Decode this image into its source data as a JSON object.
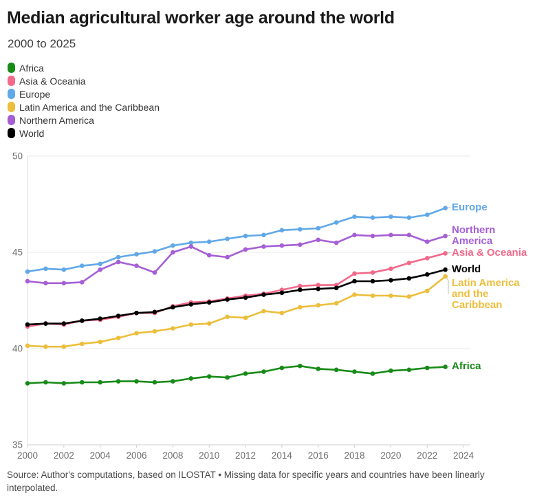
{
  "header": {
    "title": "Median agricultural worker age around the world",
    "subtitle": "2000 to 2025"
  },
  "footer": {
    "source": "Source: Author's computations, based on ILOSTAT • Missing data for specific years and countries have been linearly interpolated."
  },
  "chart_data": {
    "type": "line",
    "title": "Median agricultural worker age around the world",
    "subtitle": "2000 to 2025",
    "xlabel": "",
    "ylabel": "",
    "ylim": [
      35,
      50
    ],
    "y_ticks": [
      35,
      40,
      45,
      50
    ],
    "x_tick_labels": [
      "2000",
      "2002",
      "2004",
      "2006",
      "2008",
      "2010",
      "2012",
      "2014",
      "2016",
      "2018",
      "2020",
      "2022",
      "2024"
    ],
    "x_tick_years": [
      2000,
      2002,
      2004,
      2006,
      2008,
      2010,
      2012,
      2014,
      2016,
      2018,
      2020,
      2022,
      2024
    ],
    "grid": true,
    "legend_position": "top-left",
    "markers": true,
    "x": [
      2000,
      2001,
      2002,
      2003,
      2004,
      2005,
      2006,
      2007,
      2008,
      2009,
      2010,
      2011,
      2012,
      2013,
      2014,
      2015,
      2016,
      2017,
      2018,
      2019,
      2020,
      2021,
      2022,
      2023
    ],
    "series": [
      {
        "name": "Africa",
        "color": "#178a17",
        "end_label_lines": [
          "Africa"
        ],
        "end_label_below": false,
        "values": [
          38.2,
          38.25,
          38.2,
          38.25,
          38.25,
          38.3,
          38.3,
          38.25,
          38.3,
          38.45,
          38.55,
          38.5,
          38.7,
          38.8,
          39.0,
          39.1,
          38.95,
          38.9,
          38.8,
          38.7,
          38.85,
          38.9,
          39.0,
          39.05
        ]
      },
      {
        "name": "Asia & Oceania",
        "color": "#f2698a",
        "end_label_lines": [
          "Asia & Oceania"
        ],
        "end_label_below": false,
        "values": [
          41.15,
          41.3,
          41.25,
          41.45,
          41.5,
          41.65,
          41.85,
          41.85,
          42.2,
          42.4,
          42.45,
          42.6,
          42.75,
          42.85,
          43.05,
          43.25,
          43.3,
          43.3,
          43.9,
          43.95,
          44.15,
          44.45,
          44.7,
          44.95
        ]
      },
      {
        "name": "Europe",
        "color": "#60a8e8",
        "end_label_lines": [
          "Europe"
        ],
        "end_label_below": false,
        "values": [
          44.0,
          44.15,
          44.1,
          44.3,
          44.4,
          44.75,
          44.9,
          45.05,
          45.35,
          45.5,
          45.55,
          45.7,
          45.85,
          45.9,
          46.15,
          46.2,
          46.25,
          46.55,
          46.85,
          46.8,
          46.85,
          46.8,
          46.95,
          47.3
        ]
      },
      {
        "name": "Latin America and the Caribbean",
        "color": "#ecbe3c",
        "end_label_lines": [
          "Latin America",
          "and the",
          "Caribbean"
        ],
        "end_label_below": true,
        "values": [
          40.15,
          40.1,
          40.1,
          40.25,
          40.35,
          40.55,
          40.8,
          40.9,
          41.05,
          41.25,
          41.3,
          41.65,
          41.6,
          41.95,
          41.85,
          42.15,
          42.25,
          42.35,
          42.8,
          42.75,
          42.75,
          42.7,
          43.0,
          43.75
        ]
      },
      {
        "name": "Northern America",
        "color": "#a55fd5",
        "end_label_lines": [
          "Northern",
          "America"
        ],
        "end_label_below": false,
        "values": [
          43.5,
          43.4,
          43.4,
          43.45,
          44.1,
          44.5,
          44.3,
          43.95,
          45.0,
          45.3,
          44.85,
          44.75,
          45.15,
          45.3,
          45.35,
          45.4,
          45.65,
          45.5,
          45.9,
          45.85,
          45.9,
          45.9,
          45.55,
          45.85
        ]
      },
      {
        "name": "World",
        "color": "#000000",
        "end_label_lines": [
          "World"
        ],
        "end_label_below": false,
        "values": [
          41.25,
          41.3,
          41.3,
          41.45,
          41.55,
          41.7,
          41.85,
          41.9,
          42.15,
          42.3,
          42.4,
          42.55,
          42.65,
          42.8,
          42.9,
          43.05,
          43.1,
          43.15,
          43.5,
          43.5,
          43.55,
          43.65,
          43.85,
          44.1
        ]
      }
    ]
  }
}
